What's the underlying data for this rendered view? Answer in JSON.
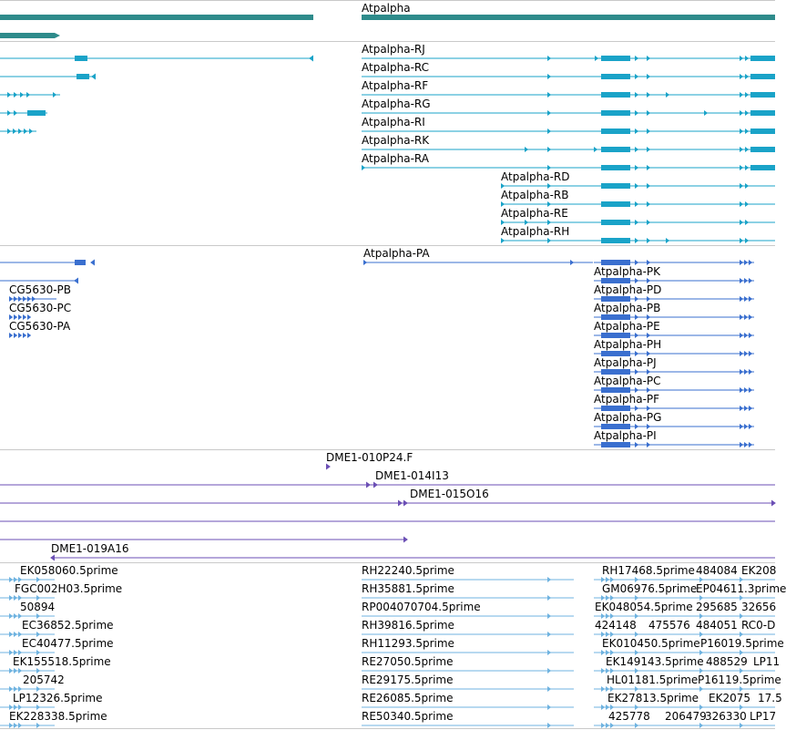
{
  "colors": {
    "gene": "#2e8b8b",
    "rna": "#1aa3c8",
    "protein": "#3a6fcf",
    "clone": "#6b4fb5",
    "est": "#6fb3e0",
    "divider": "#c9c9c9"
  },
  "gene_track": {
    "label": "Atpalpha"
  },
  "transcript_track": {
    "labels": [
      "Atpalpha-RJ",
      "Atpalpha-RC",
      "Atpalpha-RF",
      "Atpalpha-RG",
      "Atpalpha-RI",
      "Atpalpha-RK",
      "Atpalpha-RA",
      "Atpalpha-RD",
      "Atpalpha-RB",
      "Atpalpha-RE",
      "Atpalpha-RH"
    ]
  },
  "protein_track": {
    "labels": [
      "Atpalpha-PA",
      "Atpalpha-PK",
      "Atpalpha-PD",
      "Atpalpha-PB",
      "Atpalpha-PE",
      "Atpalpha-PH",
      "Atpalpha-PJ",
      "Atpalpha-PC",
      "Atpalpha-PF",
      "Atpalpha-PG",
      "Atpalpha-PI",
      "CG5630-PB",
      "CG5630-PC",
      "CG5630-PA"
    ]
  },
  "clone_track": {
    "labels": [
      "DME1-010P24.F",
      "DME1-014I13",
      "DME1-015O16",
      "DME1-019A16"
    ]
  },
  "est_track": {
    "labels": [
      "EK058060.5prime",
      "FGC002H03.5prime",
      "50894",
      "EC36852.5prime",
      "EC40477.5prime",
      "EK155518.5prime",
      "205742",
      "LP12326.5prime",
      "EK228338.5prime",
      "RH22240.5prime",
      "RH35881.5prime",
      "RP004070704.5prime",
      "RH39816.5prime",
      "RH11293.5prime",
      "RE27050.5prime",
      "RE29175.5prime",
      "RE26085.5prime",
      "RE50340.5prime",
      "RH17468.5prime",
      "484084",
      "EK208",
      "GM06976.5prime",
      "EP04611.3prime",
      "EK048054.5prime",
      "295685",
      "32656",
      "424148",
      "475576",
      "484051",
      "RC0-D",
      "EK010450.5prime",
      "P16019.5prime",
      "EK149143.5prime",
      "488529",
      "LP11",
      "HL01181.5prime",
      "P16119.5prime",
      "EK27813.5prime",
      "EK2075",
      "17.5",
      "425778",
      "206479",
      "326330",
      "LP17"
    ]
  }
}
